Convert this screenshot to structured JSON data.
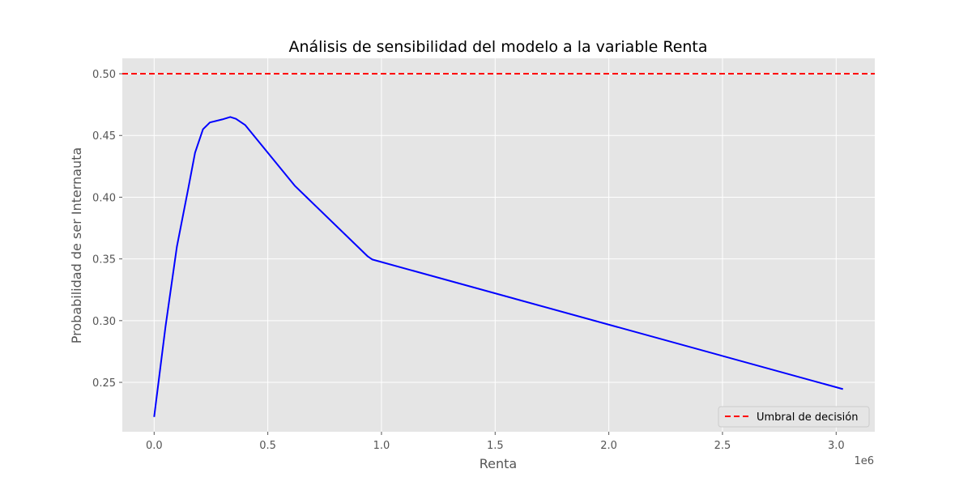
{
  "chart_data": {
    "type": "line",
    "title": "Análisis de sensibilidad del modelo a la variable Renta",
    "xlabel": "Renta",
    "ylabel": "Probabilidad de ser Internauta",
    "x_offset_label": "1e6",
    "xlim": [
      -140000,
      3170000
    ],
    "ylim": [
      0.21,
      0.5125
    ],
    "x_ticks": [
      0,
      500000,
      1000000,
      1500000,
      2000000,
      2500000,
      3000000
    ],
    "x_tick_labels": [
      "0.0",
      "0.5",
      "1.0",
      "1.5",
      "2.0",
      "2.5",
      "3.0"
    ],
    "y_ticks": [
      0.25,
      0.3,
      0.35,
      0.4,
      0.45,
      0.5
    ],
    "y_tick_labels": [
      "0.25",
      "0.30",
      "0.35",
      "0.40",
      "0.45",
      "0.50"
    ],
    "grid": true,
    "colors": {
      "plot_background": "#e5e5e5",
      "grid": "#ffffff",
      "line": "#0000ff",
      "threshold": "#ff0000",
      "text": "#555555",
      "title": "#000000"
    },
    "series": [
      {
        "color": "#0000ff",
        "x": [
          0,
          50000,
          100000,
          150000,
          180000,
          215000,
          245000,
          300000,
          335000,
          360000,
          400000,
          620000,
          940000,
          960000,
          3030000
        ],
        "y": [
          0.222,
          0.295,
          0.36,
          0.407,
          0.436,
          0.455,
          0.4605,
          0.463,
          0.465,
          0.4635,
          0.4585,
          0.409,
          0.352,
          0.3495,
          0.2445
        ]
      }
    ],
    "threshold": {
      "name": "Umbral de decisión",
      "y": 0.5,
      "color": "#ff0000",
      "style": "dashed"
    },
    "legend": {
      "placement": "lower-right",
      "entries": [
        "Umbral de decisión"
      ]
    }
  }
}
